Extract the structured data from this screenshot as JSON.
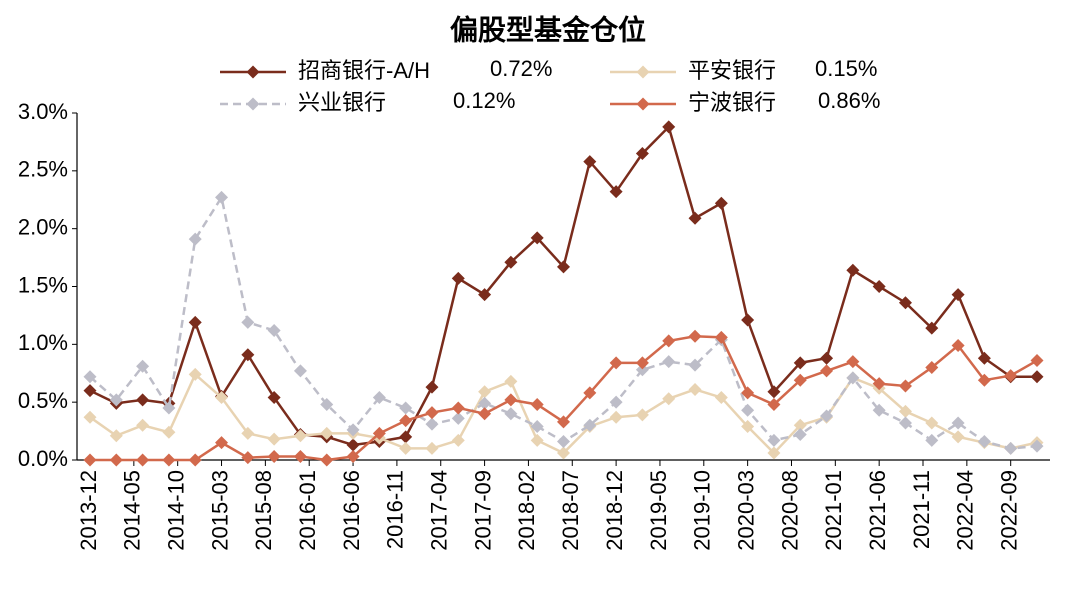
{
  "chart_data": {
    "type": "line",
    "title": "偏股型基金仓位",
    "x": [
      "2013-12",
      "2014-03",
      "2014-06",
      "2014-09",
      "2014-12",
      "2015-03",
      "2015-06",
      "2015-09",
      "2015-12",
      "2016-03",
      "2016-06",
      "2016-09",
      "2016-12",
      "2017-03",
      "2017-06",
      "2017-09",
      "2017-12",
      "2018-03",
      "2018-06",
      "2018-09",
      "2018-12",
      "2019-03",
      "2019-06",
      "2019-09",
      "2019-12",
      "2020-03",
      "2020-06",
      "2020-09",
      "2020-12",
      "2021-03",
      "2021-06",
      "2021-09",
      "2021-12",
      "2022-03",
      "2022-06",
      "2022-09",
      "2022-12"
    ],
    "xticks": [
      "2013-12",
      "2014-05",
      "2014-10",
      "2015-03",
      "2015-08",
      "2016-01",
      "2016-06",
      "2016-11",
      "2017-04",
      "2017-09",
      "2018-02",
      "2018-07",
      "2018-12",
      "2019-05",
      "2019-10",
      "2020-03",
      "2020-08",
      "2021-01",
      "2021-06",
      "2021-11",
      "2022-04",
      "2022-09"
    ],
    "ylim": [
      0,
      3
    ],
    "yticks": [
      {
        "value": 0,
        "label": "0.0%"
      },
      {
        "value": 0.5,
        "label": "0.5%"
      },
      {
        "value": 1,
        "label": "1.0%"
      },
      {
        "value": 1.5,
        "label": "1.5%"
      },
      {
        "value": 2,
        "label": "2.0%"
      },
      {
        "value": 2.5,
        "label": "2.5%"
      },
      {
        "value": 3,
        "label": "3.0%"
      }
    ],
    "grid": false,
    "series": [
      {
        "name": "招商银行-A/H",
        "legend_value": "0.72%",
        "color": "#7a2c1c",
        "dashed": false,
        "values": [
          0.6,
          0.49,
          0.52,
          0.49,
          1.19,
          0.55,
          0.91,
          0.54,
          0.22,
          0.2,
          0.13,
          0.16,
          0.2,
          0.63,
          1.57,
          1.43,
          1.71,
          1.92,
          1.67,
          2.58,
          2.32,
          2.65,
          2.88,
          2.09,
          2.22,
          1.21,
          0.59,
          0.84,
          0.88,
          1.64,
          1.5,
          1.36,
          1.14,
          1.43,
          0.88,
          0.72,
          0.72
        ]
      },
      {
        "name": "平安银行",
        "legend_value": "0.15%",
        "color": "#e8d3b2",
        "dashed": false,
        "values": [
          0.37,
          0.21,
          0.3,
          0.24,
          0.74,
          0.54,
          0.23,
          0.18,
          0.21,
          0.23,
          0.23,
          0.19,
          0.1,
          0.1,
          0.17,
          0.59,
          0.68,
          0.17,
          0.06,
          0.29,
          0.37,
          0.39,
          0.53,
          0.61,
          0.54,
          0.29,
          0.06,
          0.3,
          0.37,
          0.71,
          0.62,
          0.42,
          0.32,
          0.2,
          0.15,
          0.1,
          0.15
        ]
      },
      {
        "name": "兴业银行",
        "legend_value": "0.12%",
        "color": "#bdbdc8",
        "dashed": true,
        "values": [
          0.72,
          0.52,
          0.81,
          0.45,
          1.91,
          2.27,
          1.19,
          1.12,
          0.77,
          0.48,
          0.26,
          0.54,
          0.45,
          0.31,
          0.36,
          0.49,
          0.4,
          0.29,
          0.16,
          0.3,
          0.5,
          0.78,
          0.85,
          0.82,
          1.04,
          0.43,
          0.17,
          0.22,
          0.38,
          0.71,
          0.43,
          0.32,
          0.17,
          0.32,
          0.16,
          0.1,
          0.12
        ]
      },
      {
        "name": "宁波银行",
        "legend_value": "0.86%",
        "color": "#d2694c",
        "dashed": false,
        "values": [
          0,
          0,
          0,
          0,
          0,
          0.15,
          0.02,
          0.03,
          0.03,
          0,
          0.03,
          0.23,
          0.34,
          0.41,
          0.45,
          0.4,
          0.52,
          0.48,
          0.33,
          0.58,
          0.84,
          0.84,
          1.03,
          1.07,
          1.06,
          0.58,
          0.48,
          0.69,
          0.77,
          0.85,
          0.66,
          0.64,
          0.8,
          0.99,
          0.69,
          0.73,
          0.86
        ]
      }
    ]
  }
}
